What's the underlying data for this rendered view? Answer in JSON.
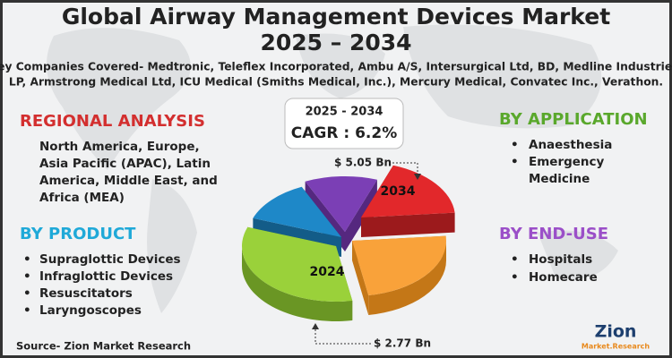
{
  "header": {
    "title": "Global Airway Management Devices Market",
    "subtitle": "2025 – 2034",
    "companies": [
      "Key Companies Covered- Medtronic, Teleflex Incorporated, Ambu A/S, Intersurgical Ltd, BD, Medline Industries,",
      "LP, Armstrong Medical Ltd, ICU Medical (Smiths Medical, Inc.), Mercury Medical, Convatec Inc., Verathon."
    ]
  },
  "regional": {
    "heading": "REGIONAL ANALYSIS",
    "lines": [
      "North America, Europe,",
      "Asia Pacific (APAC), Latin",
      "America, Middle East, and",
      "Africa (MEA)"
    ]
  },
  "product": {
    "heading": "BY PRODUCT",
    "items": [
      "Supraglottic Devices",
      "Infraglottic Devices",
      "Resuscitators",
      "Laryngoscopes"
    ]
  },
  "application": {
    "heading": "BY APPLICATION",
    "items": [
      [
        "Anaesthesia"
      ],
      [
        "Emergency",
        "Medicine"
      ]
    ]
  },
  "enduse": {
    "heading": "BY END-USE",
    "items": [
      "Hospitals",
      "Homecare"
    ]
  },
  "cagr": {
    "period": "2025 - 2034",
    "label": "CAGR : 6.2%"
  },
  "pie": {
    "label_2034": "2034",
    "label_2024": "2024",
    "value_2034": "$ 5.05 Bn",
    "value_2024": "$ 2.77 Bn"
  },
  "source": "Source- Zion Market Research",
  "logo": {
    "name": "Zion",
    "sub": "Market.Research"
  }
}
